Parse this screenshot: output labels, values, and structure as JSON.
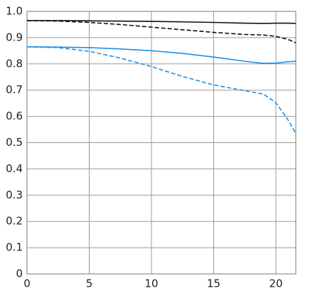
{
  "chart_data": {
    "type": "line",
    "x": [
      0,
      2.5,
      5,
      7.5,
      10,
      12.5,
      15,
      17.5,
      19,
      20,
      21,
      21.6
    ],
    "series": [
      {
        "color": "#111111",
        "dash": false,
        "values": [
          0.965,
          0.965,
          0.964,
          0.963,
          0.962,
          0.96,
          0.958,
          0.955,
          0.954,
          0.955,
          0.955,
          0.954
        ]
      },
      {
        "color": "#111111",
        "dash": true,
        "values": [
          0.965,
          0.963,
          0.958,
          0.95,
          0.94,
          0.93,
          0.92,
          0.912,
          0.91,
          0.905,
          0.893,
          0.88
        ]
      },
      {
        "color": "#1e90e6",
        "dash": false,
        "values": [
          0.865,
          0.864,
          0.862,
          0.857,
          0.85,
          0.84,
          0.826,
          0.81,
          0.802,
          0.803,
          0.808,
          0.81
        ]
      },
      {
        "color": "#1e90e6",
        "dash": true,
        "values": [
          0.865,
          0.862,
          0.848,
          0.822,
          0.79,
          0.752,
          0.72,
          0.698,
          0.685,
          0.652,
          0.585,
          0.535
        ]
      }
    ],
    "xlim": [
      0,
      21.6
    ],
    "ylim": [
      0,
      1
    ],
    "xticks": [
      0,
      5,
      10,
      15,
      20
    ],
    "yticks": [
      0,
      0.1,
      0.2,
      0.3,
      0.4,
      0.5,
      0.6,
      0.7,
      0.8,
      0.9,
      {
        "value": 1,
        "label": "1.0"
      }
    ],
    "grid": true
  }
}
